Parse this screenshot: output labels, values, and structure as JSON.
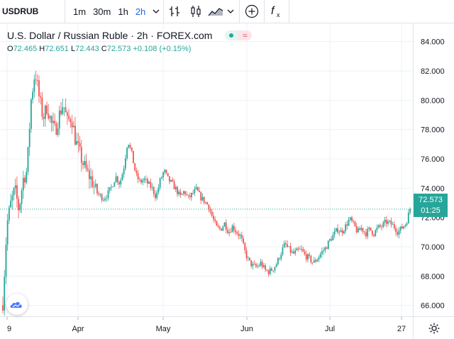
{
  "toolbar": {
    "symbol": "USDRUB",
    "intervals": [
      "1m",
      "30m",
      "1h",
      "2h"
    ],
    "active_interval": "2h",
    "icons": [
      "chevron-down-icon",
      "bar-style-icon",
      "candle-style-icon",
      "area-style-icon",
      "chevron-down-icon",
      "compare-plus-icon",
      "indicators-fx-icon"
    ]
  },
  "legend": {
    "title": "U.S. Dollar / Russian Ruble · 2h · FOREX.com",
    "approx": "≈",
    "open_label": "O",
    "open": "72.465",
    "high_label": "H",
    "high": "72.651",
    "low_label": "L",
    "low": "72.443",
    "close_label": "C",
    "close": "72.573",
    "change": "+0.108 (+0.15%)"
  },
  "price_tag": {
    "price": "72.573",
    "countdown": "01:25"
  },
  "colors": {
    "up": "#26a69a",
    "down": "#ef5350",
    "accent": "#2962ff",
    "grid": "#eef0f4"
  },
  "chart_data": {
    "type": "candlestick",
    "title": "U.S. Dollar / Russian Ruble · 2h · FOREX.com",
    "y_ticks": [
      "84.000",
      "82.000",
      "80.000",
      "78.000",
      "76.000",
      "74.000",
      "72.000",
      "70.000",
      "68.000",
      "66.000"
    ],
    "ylim": [
      65.5,
      85.0
    ],
    "x_ticks": [
      "9",
      "Apr",
      "May",
      "Jun",
      "Jul",
      "27"
    ],
    "last_price": 72.573,
    "series": [
      {
        "date": "Mar 9",
        "close": 66.2
      },
      {
        "date": "Mar 10",
        "close": 71.5
      },
      {
        "date": "Mar 11",
        "close": 73.0
      },
      {
        "date": "Mar 12",
        "close": 73.9
      },
      {
        "date": "Mar 13",
        "close": 72.5
      },
      {
        "date": "Mar 16",
        "close": 74.6
      },
      {
        "date": "Mar 17",
        "close": 75.2
      },
      {
        "date": "Mar 18",
        "close": 80.0
      },
      {
        "date": "Mar 19",
        "close": 82.0
      },
      {
        "date": "Mar 20",
        "close": 80.2
      },
      {
        "date": "Mar 23",
        "close": 78.8
      },
      {
        "date": "Mar 24",
        "close": 79.6
      },
      {
        "date": "Mar 25",
        "close": 78.4
      },
      {
        "date": "Mar 26",
        "close": 77.9
      },
      {
        "date": "Mar 27",
        "close": 79.0
      },
      {
        "date": "Mar 30",
        "close": 79.8
      },
      {
        "date": "Mar 31",
        "close": 78.5
      },
      {
        "date": "Apr 1",
        "close": 78.9
      },
      {
        "date": "Apr 2",
        "close": 77.3
      },
      {
        "date": "Apr 3",
        "close": 76.4
      },
      {
        "date": "Apr 6",
        "close": 75.6
      },
      {
        "date": "Apr 7",
        "close": 75.0
      },
      {
        "date": "Apr 8",
        "close": 74.6
      },
      {
        "date": "Apr 9",
        "close": 73.8
      },
      {
        "date": "Apr 10",
        "close": 73.5
      },
      {
        "date": "Apr 13",
        "close": 73.3
      },
      {
        "date": "Apr 14",
        "close": 73.6
      },
      {
        "date": "Apr 15",
        "close": 74.1
      },
      {
        "date": "Apr 16",
        "close": 74.8
      },
      {
        "date": "Apr 17",
        "close": 74.3
      },
      {
        "date": "Apr 20",
        "close": 75.4
      },
      {
        "date": "Apr 21",
        "close": 77.3
      },
      {
        "date": "Apr 22",
        "close": 76.3
      },
      {
        "date": "Apr 23",
        "close": 74.9
      },
      {
        "date": "Apr 24",
        "close": 74.4
      },
      {
        "date": "Apr 27",
        "close": 74.6
      },
      {
        "date": "Apr 28",
        "close": 74.3
      },
      {
        "date": "Apr 29",
        "close": 74.0
      },
      {
        "date": "Apr 30",
        "close": 73.4
      },
      {
        "date": "May 1",
        "close": 74.5
      },
      {
        "date": "May 4",
        "close": 75.2
      },
      {
        "date": "May 5",
        "close": 74.6
      },
      {
        "date": "May 6",
        "close": 74.3
      },
      {
        "date": "May 7",
        "close": 73.9
      },
      {
        "date": "May 8",
        "close": 73.4
      },
      {
        "date": "May 11",
        "close": 73.8
      },
      {
        "date": "May 12",
        "close": 73.3
      },
      {
        "date": "May 13",
        "close": 73.6
      },
      {
        "date": "May 14",
        "close": 73.9
      },
      {
        "date": "May 15",
        "close": 73.4
      },
      {
        "date": "May 18",
        "close": 73.1
      },
      {
        "date": "May 19",
        "close": 72.8
      },
      {
        "date": "May 20",
        "close": 72.0
      },
      {
        "date": "May 21",
        "close": 71.3
      },
      {
        "date": "May 22",
        "close": 71.2
      },
      {
        "date": "May 25",
        "close": 71.6
      },
      {
        "date": "May 26",
        "close": 71.0
      },
      {
        "date": "May 27",
        "close": 71.4
      },
      {
        "date": "May 28",
        "close": 71.0
      },
      {
        "date": "May 29",
        "close": 70.7
      },
      {
        "date": "Jun 1",
        "close": 69.7
      },
      {
        "date": "Jun 2",
        "close": 69.0
      },
      {
        "date": "Jun 3",
        "close": 68.7
      },
      {
        "date": "Jun 4",
        "close": 68.6
      },
      {
        "date": "Jun 5",
        "close": 68.9
      },
      {
        "date": "Jun 8",
        "close": 68.4
      },
      {
        "date": "Jun 9",
        "close": 68.3
      },
      {
        "date": "Jun 10",
        "close": 68.5
      },
      {
        "date": "Jun 11",
        "close": 68.9
      },
      {
        "date": "Jun 12",
        "close": 69.6
      },
      {
        "date": "Jun 15",
        "close": 70.2
      },
      {
        "date": "Jun 16",
        "close": 69.8
      },
      {
        "date": "Jun 17",
        "close": 69.5
      },
      {
        "date": "Jun 18",
        "close": 69.7
      },
      {
        "date": "Jun 19",
        "close": 69.8
      },
      {
        "date": "Jun 22",
        "close": 69.4
      },
      {
        "date": "Jun 23",
        "close": 69.2
      },
      {
        "date": "Jun 24",
        "close": 68.9
      },
      {
        "date": "Jun 25",
        "close": 69.2
      },
      {
        "date": "Jun 26",
        "close": 69.6
      },
      {
        "date": "Jun 29",
        "close": 69.9
      },
      {
        "date": "Jun 30",
        "close": 70.4
      },
      {
        "date": "Jul 1",
        "close": 70.8
      },
      {
        "date": "Jul 2",
        "close": 71.2
      },
      {
        "date": "Jul 3",
        "close": 71.0
      },
      {
        "date": "Jul 6",
        "close": 71.4
      },
      {
        "date": "Jul 7",
        "close": 71.9
      },
      {
        "date": "Jul 8",
        "close": 71.5
      },
      {
        "date": "Jul 9",
        "close": 71.0
      },
      {
        "date": "Jul 10",
        "close": 71.3
      },
      {
        "date": "Jul 13",
        "close": 70.9
      },
      {
        "date": "Jul 14",
        "close": 71.2
      },
      {
        "date": "Jul 15",
        "close": 70.9
      },
      {
        "date": "Jul 16",
        "close": 71.3
      },
      {
        "date": "Jul 17",
        "close": 71.4
      },
      {
        "date": "Jul 20",
        "close": 71.7
      },
      {
        "date": "Jul 21",
        "close": 71.6
      },
      {
        "date": "Jul 22",
        "close": 71.4
      },
      {
        "date": "Jul 23",
        "close": 71.0
      },
      {
        "date": "Jul 24",
        "close": 71.3
      },
      {
        "date": "Jul 27",
        "close": 71.6
      },
      {
        "date": "Jul 28",
        "close": 72.57
      }
    ]
  }
}
